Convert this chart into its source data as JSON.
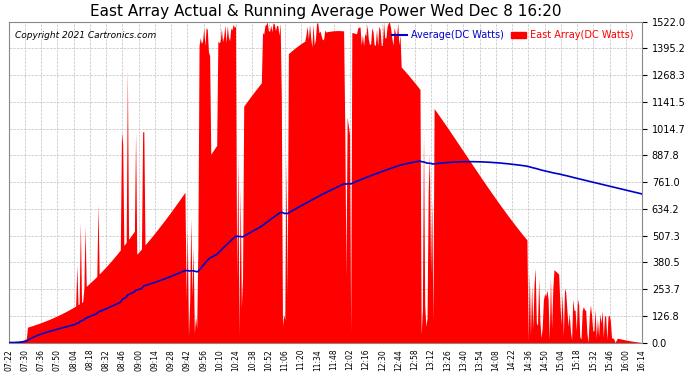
{
  "title": "East Array Actual & Running Average Power Wed Dec 8 16:20",
  "copyright": "Copyright 2021 Cartronics.com",
  "legend_avg": "Average(DC Watts)",
  "legend_east": "East Array(DC Watts)",
  "yticks": [
    0.0,
    126.8,
    253.7,
    380.5,
    507.3,
    634.2,
    761.0,
    887.8,
    1014.7,
    1141.5,
    1268.3,
    1395.2,
    1522.0
  ],
  "ymax": 1522.0,
  "ymin": 0.0,
  "bar_color": "#ff0000",
  "avg_color": "#0000cc",
  "bg_color": "#ffffff",
  "grid_color": "#c0c0c0",
  "title_color": "#000000",
  "copyright_color": "#000000",
  "legend_avg_color": "#0000cc",
  "legend_east_color": "#ff0000",
  "xtick_labels": [
    "07:22",
    "07:30",
    "07:36",
    "07:50",
    "08:04",
    "08:18",
    "08:32",
    "08:46",
    "09:00",
    "09:14",
    "09:28",
    "09:42",
    "09:56",
    "10:10",
    "10:24",
    "10:38",
    "10:52",
    "11:06",
    "11:20",
    "11:34",
    "11:48",
    "12:02",
    "12:16",
    "12:30",
    "12:44",
    "12:58",
    "13:12",
    "13:26",
    "13:40",
    "13:54",
    "14:08",
    "14:22",
    "14:36",
    "14:50",
    "15:04",
    "15:18",
    "15:32",
    "15:46",
    "16:00",
    "16:14"
  ]
}
